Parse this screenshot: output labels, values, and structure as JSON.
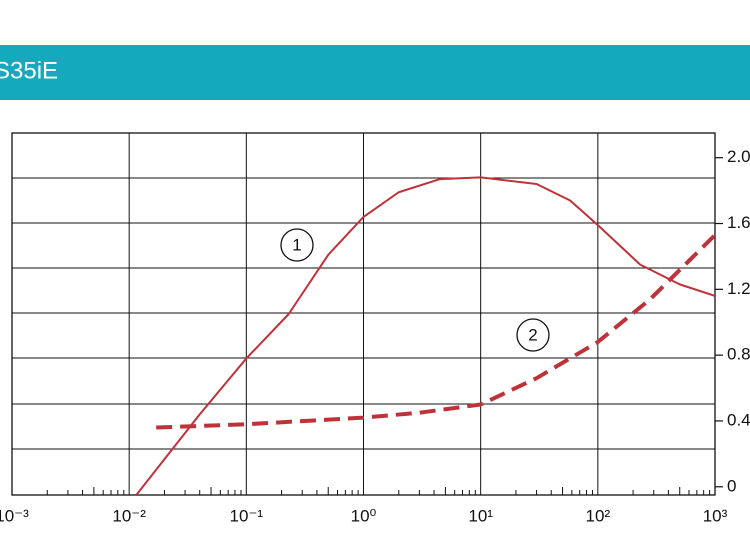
{
  "chart_data": {
    "type": "line",
    "title": "S35iE",
    "xlog": true,
    "xlim": [
      0.001,
      1000
    ],
    "xticks": [
      {
        "value": 0.001,
        "label": "10⁻³"
      },
      {
        "value": 0.01,
        "label": "10⁻²"
      },
      {
        "value": 0.1,
        "label": "10⁻¹"
      },
      {
        "value": 1,
        "label": "10⁰"
      },
      {
        "value": 10,
        "label": "10¹"
      },
      {
        "value": 100,
        "label": "10²"
      },
      {
        "value": 1000,
        "label": "10³"
      }
    ],
    "ylim": [
      -0.05,
      2.15
    ],
    "yticks": [
      {
        "value": 2.0,
        "label": "2.0"
      },
      {
        "value": 1.6,
        "label": "1.6"
      },
      {
        "value": 1.2,
        "label": "1.2"
      },
      {
        "value": 0.8,
        "label": "0.8"
      },
      {
        "value": 0.4,
        "label": "0.4"
      },
      0
    ],
    "annotations": [
      "1",
      "2"
    ],
    "series": [
      {
        "color": "#c0323a",
        "dashed": false,
        "x": [
          0.0115,
          0.04,
          0.1,
          0.23,
          0.5,
          1,
          2,
          4.5,
          10,
          30,
          58,
          100,
          230,
          500,
          1000
        ],
        "values": [
          -0.05,
          0.44,
          0.78,
          1.05,
          1.41,
          1.64,
          1.79,
          1.87,
          1.88,
          1.84,
          1.74,
          1.59,
          1.35,
          1.23,
          1.16
        ]
      },
      {
        "color": "#c0323a",
        "dashed": true,
        "x": [
          0.017,
          0.1,
          1,
          3,
          10,
          30,
          100,
          280,
          1000
        ],
        "values": [
          0.36,
          0.38,
          0.42,
          0.45,
          0.5,
          0.66,
          0.88,
          1.14,
          1.53
        ]
      }
    ]
  }
}
